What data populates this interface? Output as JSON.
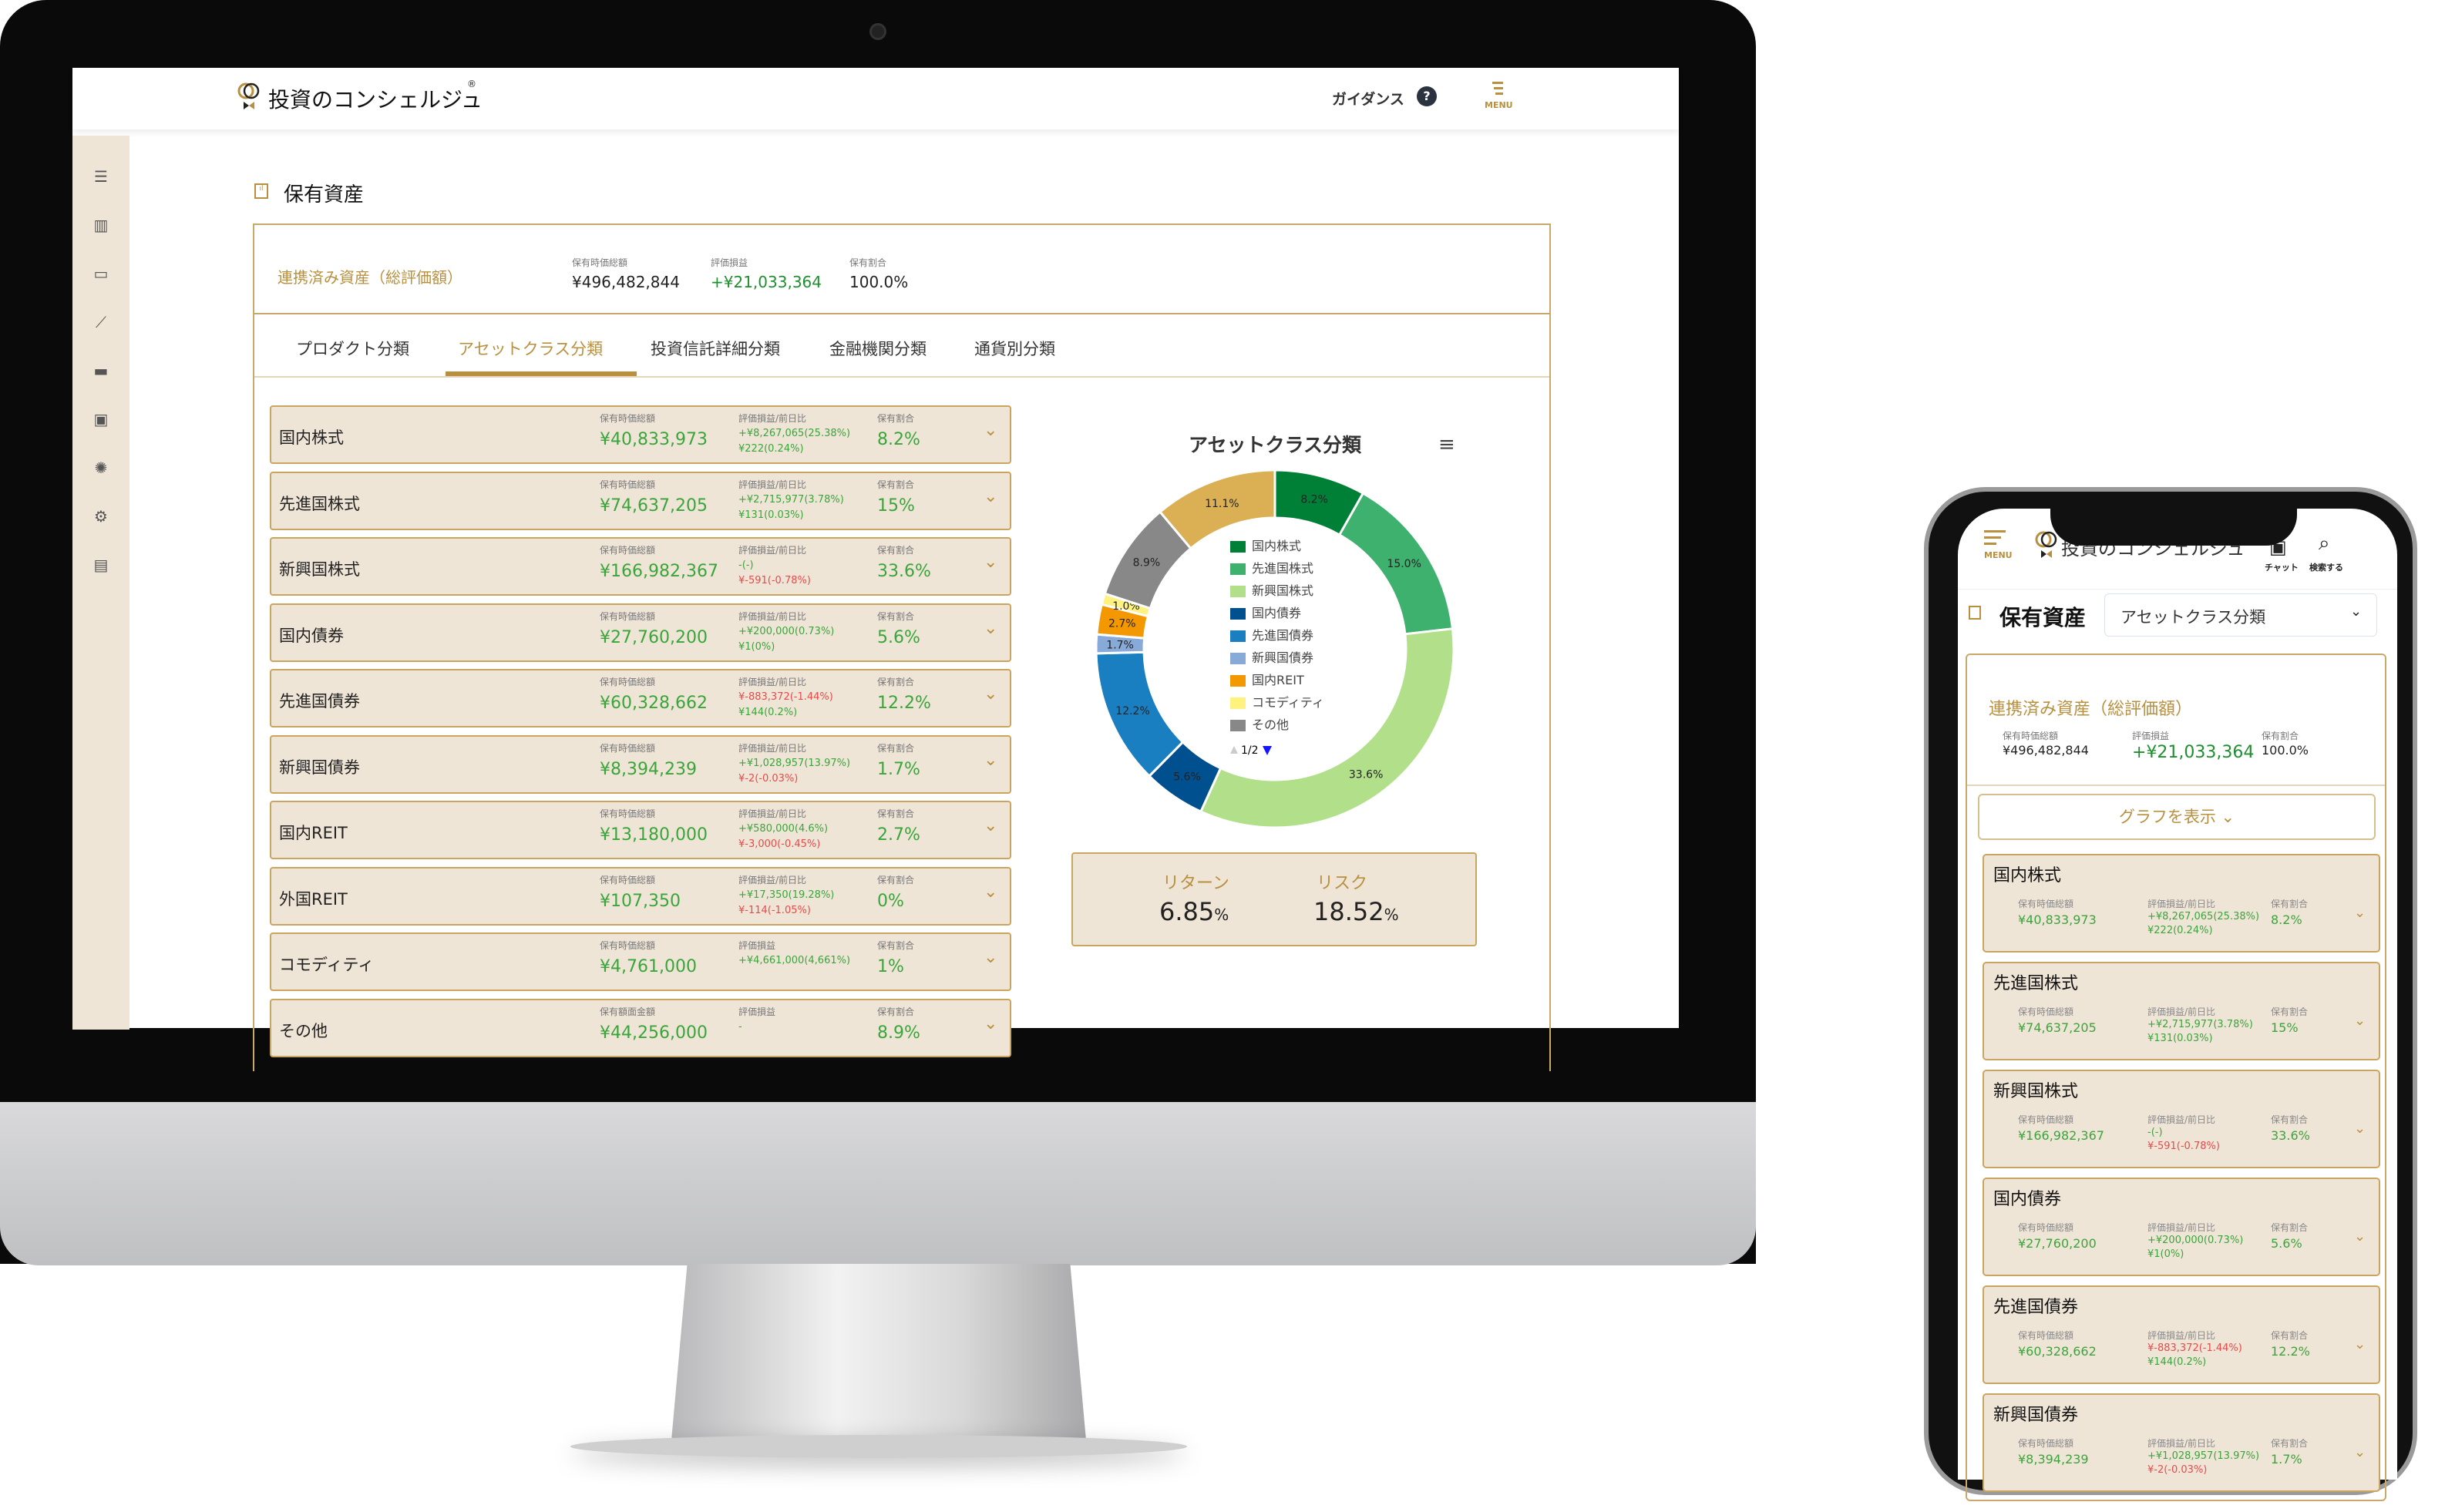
{
  "app": {
    "logo_text": "投資のコンシェルジュ",
    "registered": "®",
    "guidance": "ガイダンス",
    "guidance_icon": "?",
    "menu": "MENU",
    "chat": "チャット",
    "search": "検索する"
  },
  "page": {
    "title": "保有資産"
  },
  "sidebar": {
    "icons": [
      "menu-icon",
      "bar-chart-icon",
      "card-icon",
      "line-chart-icon",
      "chat-icon",
      "contact-icon",
      "lightbulb-icon",
      "gear-icon",
      "document-icon"
    ]
  },
  "summary": {
    "title": "連携済み資産（総評価額）",
    "total_label": "保有時価総額",
    "total": "¥496,482,844",
    "pl_label": "評価損益",
    "pl": "+¥21,033,364",
    "share_label": "保有割合",
    "share": "100.0%"
  },
  "tabs": [
    {
      "label": "プロダクト分類"
    },
    {
      "label": "アセットクラス分類",
      "active": true
    },
    {
      "label": "投資信託詳細分類"
    },
    {
      "label": "金融機関分類"
    },
    {
      "label": "通貨別分類"
    }
  ],
  "rows": [
    {
      "name": "国内株式",
      "value_label": "保有時価総額",
      "value": "¥40,833,973",
      "pl_label": "評価損益/前日比",
      "pl": "+¥8,267,065(25.38%)",
      "pl_neg": false,
      "day": "¥222(0.24%)",
      "day_neg": false,
      "share_label": "保有割合",
      "share": "8.2%"
    },
    {
      "name": "先進国株式",
      "value_label": "保有時価総額",
      "value": "¥74,637,205",
      "pl_label": "評価損益/前日比",
      "pl": "+¥2,715,977(3.78%)",
      "pl_neg": false,
      "day": "¥131(0.03%)",
      "day_neg": false,
      "share_label": "保有割合",
      "share": "15%"
    },
    {
      "name": "新興国株式",
      "value_label": "保有時価総額",
      "value": "¥166,982,367",
      "pl_label": "評価損益/前日比",
      "pl": "-(-)",
      "pl_neg": false,
      "day": "¥-591(-0.78%)",
      "day_neg": true,
      "share_label": "保有割合",
      "share": "33.6%"
    },
    {
      "name": "国内債券",
      "value_label": "保有時価総額",
      "value": "¥27,760,200",
      "pl_label": "評価損益/前日比",
      "pl": "+¥200,000(0.73%)",
      "pl_neg": false,
      "day": "¥1(0%)",
      "day_neg": false,
      "share_label": "保有割合",
      "share": "5.6%"
    },
    {
      "name": "先進国債券",
      "value_label": "保有時価総額",
      "value": "¥60,328,662",
      "pl_label": "評価損益/前日比",
      "pl": "¥-883,372(-1.44%)",
      "pl_neg": true,
      "day": "¥144(0.2%)",
      "day_neg": false,
      "share_label": "保有割合",
      "share": "12.2%"
    },
    {
      "name": "新興国債券",
      "value_label": "保有時価総額",
      "value": "¥8,394,239",
      "pl_label": "評価損益/前日比",
      "pl": "+¥1,028,957(13.97%)",
      "pl_neg": false,
      "day": "¥-2(-0.03%)",
      "day_neg": true,
      "share_label": "保有割合",
      "share": "1.7%"
    },
    {
      "name": "国内REIT",
      "value_label": "保有時価総額",
      "value": "¥13,180,000",
      "pl_label": "評価損益/前日比",
      "pl": "+¥580,000(4.6%)",
      "pl_neg": false,
      "day": "¥-3,000(-0.45%)",
      "day_neg": true,
      "share_label": "保有割合",
      "share": "2.7%"
    },
    {
      "name": "外国REIT",
      "value_label": "保有時価総額",
      "value": "¥107,350",
      "pl_label": "評価損益/前日比",
      "pl": "+¥17,350(19.28%)",
      "pl_neg": false,
      "day": "¥-114(-1.05%)",
      "day_neg": true,
      "share_label": "保有割合",
      "share": "0%"
    },
    {
      "name": "コモディティ",
      "value_label": "保有時価総額",
      "value": "¥4,761,000",
      "pl_label": "評価損益",
      "pl": "+¥4,661,000(4,661%)",
      "pl_neg": false,
      "day": "",
      "day_neg": false,
      "share_label": "保有割合",
      "share": "1%"
    },
    {
      "name": "その他",
      "value_label": "保有額面金額",
      "value": "¥44,256,000",
      "pl_label": "評価損益",
      "pl": "-",
      "pl_neg": false,
      "day": "",
      "day_neg": false,
      "share_label": "保有割合",
      "share": "8.9%"
    }
  ],
  "chart_data": {
    "type": "pie",
    "donut": true,
    "title": "アセットクラス分類",
    "categories": [
      "国内株式",
      "先進国株式",
      "新興国株式",
      "国内債券",
      "先進国債券",
      "新興国債券",
      "国内REIT",
      "コモディティ",
      "その他",
      ""
    ],
    "values": [
      8.2,
      15.0,
      33.6,
      5.6,
      12.2,
      1.7,
      2.7,
      1.0,
      8.9,
      11.1
    ],
    "labels": [
      "8.2%",
      "15.0%",
      "33.6%",
      "5.6%",
      "12.2%",
      "1.7%",
      "2.7%",
      "1.0%",
      "8.9%",
      "11.1%"
    ],
    "colors": [
      "#007f37",
      "#3db16d",
      "#b2df8a",
      "#004f8f",
      "#1a7fc1",
      "#88aad8",
      "#f39800",
      "#fff27f",
      "#888888",
      "#dbb054"
    ],
    "legend": {
      "placement": "center",
      "page": "1/2",
      "visible_count": 9
    }
  },
  "return_risk": {
    "return_label": "リターン",
    "return": "6.85",
    "risk_label": "リスク",
    "risk": "18.52",
    "unit": "%"
  },
  "mobile": {
    "select_value": "アセットクラス分類",
    "show_graph": "グラフを表示 ⌄",
    "visible_rows": 6
  }
}
